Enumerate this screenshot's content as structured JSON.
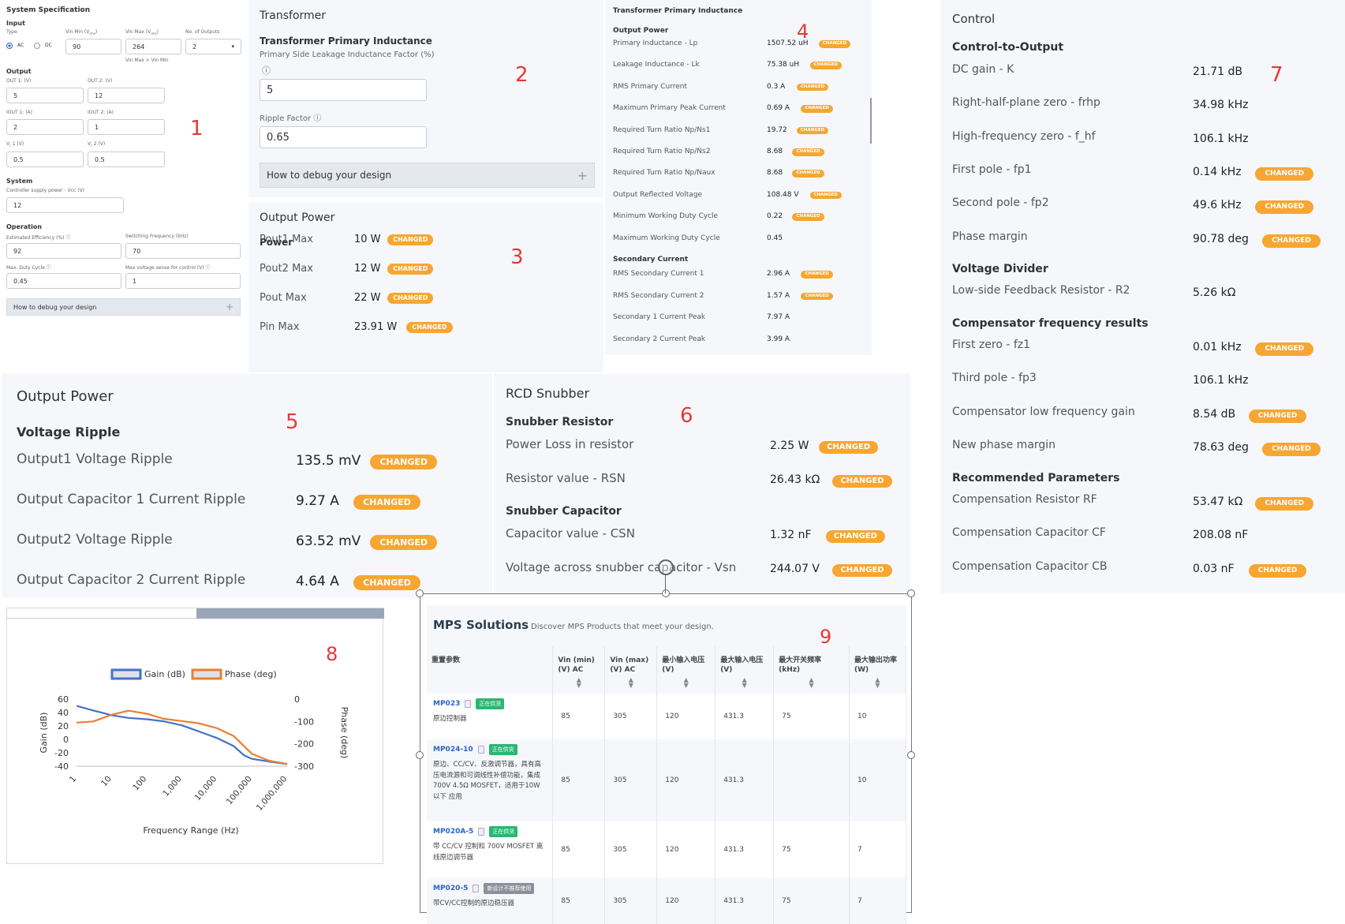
{
  "p1": {
    "title": "System Specification",
    "input_label": "Input",
    "type_label": "Type",
    "type_ac": "AC",
    "type_dc": "DC",
    "vin_min_label": "Vin Min (V",
    "vin_min_sub": "rms",
    "vin_max_label": "Vin Max (V",
    "vin_max_sub": "rms",
    "outputs_label": "No. of Outputs",
    "vin_min": "90",
    "vin_max": "264",
    "outputs": "2",
    "vin_note": "Vin Max > Vin Min",
    "output_label": "Output",
    "out1_label": "OUT 1: (V)",
    "out2_label": "OUT 2: (V)",
    "out1": "5",
    "out2": "12",
    "iout1_label": "IOUT 1: (A)",
    "iout2_label": "IOUT 2: (A)",
    "iout1": "2",
    "iout2": "1",
    "vr1_label": "V",
    "vr1_sub": "r",
    "vr1_tail": "1 (V)",
    "vr2_label": "V",
    "vr2_sub": "r",
    "vr2_tail": "2 (V)",
    "vr1": "0.5",
    "vr2": "0.5",
    "system_label": "System",
    "vcc_label": "Controller supply power - Vcc (V)",
    "vcc": "12",
    "operation_label": "Operation",
    "eff_label": "Estimated Efficiency (%)",
    "fsw_label": "Switching Frequency (kHz)",
    "eff": "92",
    "fsw": "70",
    "duty_label": "Max. Duty Cycle",
    "vsense_label": "Max voltage sense for control (V)",
    "duty": "0.45",
    "vsense": "1",
    "debug": "How to debug your design",
    "marker": "1"
  },
  "p2": {
    "title": "Transformer",
    "sub": "Transformer Primary Inductance",
    "leak_label": "Primary Side Leakage Inductance Factor (%)",
    "leak": "5",
    "ripple_label": "Ripple Factor",
    "ripple": "0.65",
    "debug": "How to debug your design",
    "marker": "2"
  },
  "p3": {
    "title": "Output Power",
    "sub": "Power",
    "rows": [
      {
        "label": "Pout1 Max",
        "value": "10 W",
        "changed": true
      },
      {
        "label": "Pout2 Max",
        "value": "12 W",
        "changed": true
      },
      {
        "label": "Pout Max",
        "value": "22 W",
        "changed": true
      },
      {
        "label": "Pin Max",
        "value": "23.91 W",
        "changed": true
      }
    ],
    "marker": "3"
  },
  "p4": {
    "title": "Transformer Primary Inductance",
    "sec1": "Output Power",
    "rows1": [
      {
        "label": "Primary Inductance - Lp",
        "value": "1507.52 uH",
        "changed": true
      },
      {
        "label": "Leakage Inductance - Lk",
        "value": "75.38 uH",
        "changed": true
      },
      {
        "label": "RMS Primary Current",
        "value": "0.3 A",
        "changed": true
      },
      {
        "label": "Maximum Primary Peak Current",
        "value": "0.69 A",
        "changed": true
      },
      {
        "label": "Required Turn Ratio Np/Ns1",
        "value": "19.72",
        "changed": true
      },
      {
        "label": "Required Turn Ratio Np/Ns2",
        "value": "8.68",
        "changed": true
      },
      {
        "label": "Required Turn Ratio Np/Naux",
        "value": "8.68",
        "changed": true
      },
      {
        "label": "Output Reflected Voltage",
        "value": "108.48 V",
        "changed": true
      },
      {
        "label": "Minimum Working Duty Cycle",
        "value": "0.22",
        "changed": true
      },
      {
        "label": "Maximum Working Duty Cycle",
        "value": "0.45",
        "changed": false
      }
    ],
    "sec2": "Secondary Current",
    "rows2": [
      {
        "label": "RMS Secondary Current 1",
        "value": "2.96 A",
        "changed": true
      },
      {
        "label": "RMS Secondary Current 2",
        "value": "1.57 A",
        "changed": true
      },
      {
        "label": "Secondary 1 Current Peak",
        "value": "7.97 A",
        "changed": false
      },
      {
        "label": "Secondary 2 Current Peak",
        "value": "3.99 A",
        "changed": false
      }
    ],
    "marker": "4"
  },
  "p5": {
    "title": "Output Power",
    "sub": "Voltage Ripple",
    "rows": [
      {
        "label": "Output1 Voltage Ripple",
        "value": "135.5 mV",
        "changed": true
      },
      {
        "label": "Output Capacitor 1 Current Ripple",
        "value": "9.27 A",
        "changed": true
      },
      {
        "label": "Output2 Voltage Ripple",
        "value": "63.52 mV",
        "changed": true
      },
      {
        "label": "Output Capacitor 2 Current Ripple",
        "value": "4.64 A",
        "changed": true
      }
    ],
    "marker": "5"
  },
  "p6": {
    "title": "RCD Snubber",
    "sec1": "Snubber Resistor",
    "rows1": [
      {
        "label": "Power Loss in resistor",
        "value": "2.25 W",
        "changed": true
      },
      {
        "label": "Resistor value - RSN",
        "value": "26.43 kΩ",
        "changed": true
      }
    ],
    "sec2": "Snubber Capacitor",
    "rows2": [
      {
        "label": "Capacitor value - CSN",
        "value": "1.32 nF",
        "changed": true
      },
      {
        "label": "Voltage across snubber capacitor - Vsn",
        "value": "244.07 V",
        "changed": true
      }
    ],
    "marker": "6"
  },
  "p7": {
    "title": "Control",
    "sec1": "Control-to-Output",
    "rows1": [
      {
        "label": "DC gain - K",
        "value": "21.71 dB",
        "changed": false
      },
      {
        "label": "Right-half-plane zero - frhp",
        "value": "34.98 kHz",
        "changed": false
      },
      {
        "label": "High-frequency zero - f_hf",
        "value": "106.1 kHz",
        "changed": false
      },
      {
        "label": "First pole - fp1",
        "value": "0.14 kHz",
        "changed": true
      },
      {
        "label": "Second pole - fp2",
        "value": "49.6 kHz",
        "changed": true
      },
      {
        "label": "Phase margin",
        "value": "90.78 deg",
        "changed": true
      }
    ],
    "sec2": "Voltage Divider",
    "rows2": [
      {
        "label": "Low-side Feedback Resistor - R2",
        "value": "5.26 kΩ",
        "changed": false
      }
    ],
    "sec3": "Compensator frequency results",
    "rows3": [
      {
        "label": "First zero - fz1",
        "value": "0.01 kHz",
        "changed": true
      },
      {
        "label": "Third pole - fp3",
        "value": "106.1 kHz",
        "changed": false
      },
      {
        "label": "Compensator low frequency gain",
        "value": "8.54 dB",
        "changed": true
      },
      {
        "label": "New phase margin",
        "value": "78.63 deg",
        "changed": true
      }
    ],
    "sec4": "Recommended Parameters",
    "rows4": [
      {
        "label": "Compensation Resistor RF",
        "value": "53.47 kΩ",
        "changed": true
      },
      {
        "label": "Compensation Capacitor CF",
        "value": "208.08 nF",
        "changed": false
      },
      {
        "label": "Compensation Capacitor CB",
        "value": "0.03 nF",
        "changed": true
      }
    ],
    "marker": "7"
  },
  "changed_label": "CHANGED",
  "chart_data": {
    "type": "line",
    "title": "",
    "xlabel": "Frequency Range (Hz)",
    "ylabel": "Gain (dB)",
    "y2label": "Phase (deg)",
    "xscale": "log",
    "xticks": [
      "1",
      "10",
      "100",
      "1,000",
      "10,000",
      "100,000",
      "1,000,000"
    ],
    "yticks": [
      "60",
      "40",
      "20",
      "0",
      "-20",
      "-40"
    ],
    "y2ticks": [
      "0",
      "-100",
      "-200",
      "-300"
    ],
    "ylim": [
      -40,
      60
    ],
    "y2lim": [
      -300,
      0
    ],
    "xlim": [
      1,
      1000000
    ],
    "legend": "top",
    "series": [
      {
        "name": "Gain (dB)",
        "axis": "left",
        "color": "#4472c4",
        "x": [
          1,
          3,
          10,
          30,
          100,
          300,
          1000,
          3000,
          10000,
          30000,
          60000,
          100000,
          300000,
          1000000
        ],
        "y": [
          50,
          43,
          36,
          32,
          30,
          27,
          21,
          12,
          2,
          -10,
          -24,
          -29,
          -33,
          -37
        ]
      },
      {
        "name": "Phase (deg)",
        "axis": "right",
        "color": "#ed7d31",
        "x": [
          1,
          3,
          10,
          30,
          100,
          300,
          1000,
          3000,
          10000,
          30000,
          100000,
          300000,
          1000000
        ],
        "y": [
          -105,
          -100,
          -70,
          -52,
          -65,
          -88,
          -98,
          -108,
          -130,
          -165,
          -245,
          -275,
          -290
        ]
      }
    ],
    "marker": "8"
  },
  "p9": {
    "title": "MPS Solutions",
    "subtitle": "Discover MPS Products that meet your design.",
    "marker": "9",
    "headers": [
      "重置参数",
      "Vin (min) (V) AC",
      "Vin (max) (V) AC",
      "最小输入电压 (V)",
      "最大输入电压 (V)",
      "最大开关频率 (kHz)",
      "最大输出功率 (W)"
    ],
    "rows": [
      {
        "part": "MP023",
        "status": "正在供货",
        "status_color": "#2bb673",
        "desc": "原边控制器",
        "vals": [
          "85",
          "305",
          "120",
          "431.3",
          "75",
          "10"
        ]
      },
      {
        "part": "MP024-10",
        "status": "正在供货",
        "status_color": "#2bb673",
        "desc": "原边、CC/CV、反激调节器，具有高压电流源和可调线性补偿功能，集成 700V 4.5Ω MOSFET，适用于10W以下 应用",
        "vals": [
          "85",
          "305",
          "120",
          "431.3",
          "",
          "10"
        ]
      },
      {
        "part": "MP020A-5",
        "status": "正在供货",
        "status_color": "#2bb673",
        "desc": "带 CC/CV 控制和 700V MOSFET 离线原边调节器",
        "vals": [
          "85",
          "305",
          "120",
          "431.3",
          "75",
          "7"
        ]
      },
      {
        "part": "MP020-5",
        "status": "新设计不推荐使用",
        "status_color": "#8a8f99",
        "desc": "带CV/CC控制的原边稳压器",
        "vals": [
          "85",
          "305",
          "120",
          "431.3",
          "75",
          "7"
        ]
      }
    ]
  }
}
